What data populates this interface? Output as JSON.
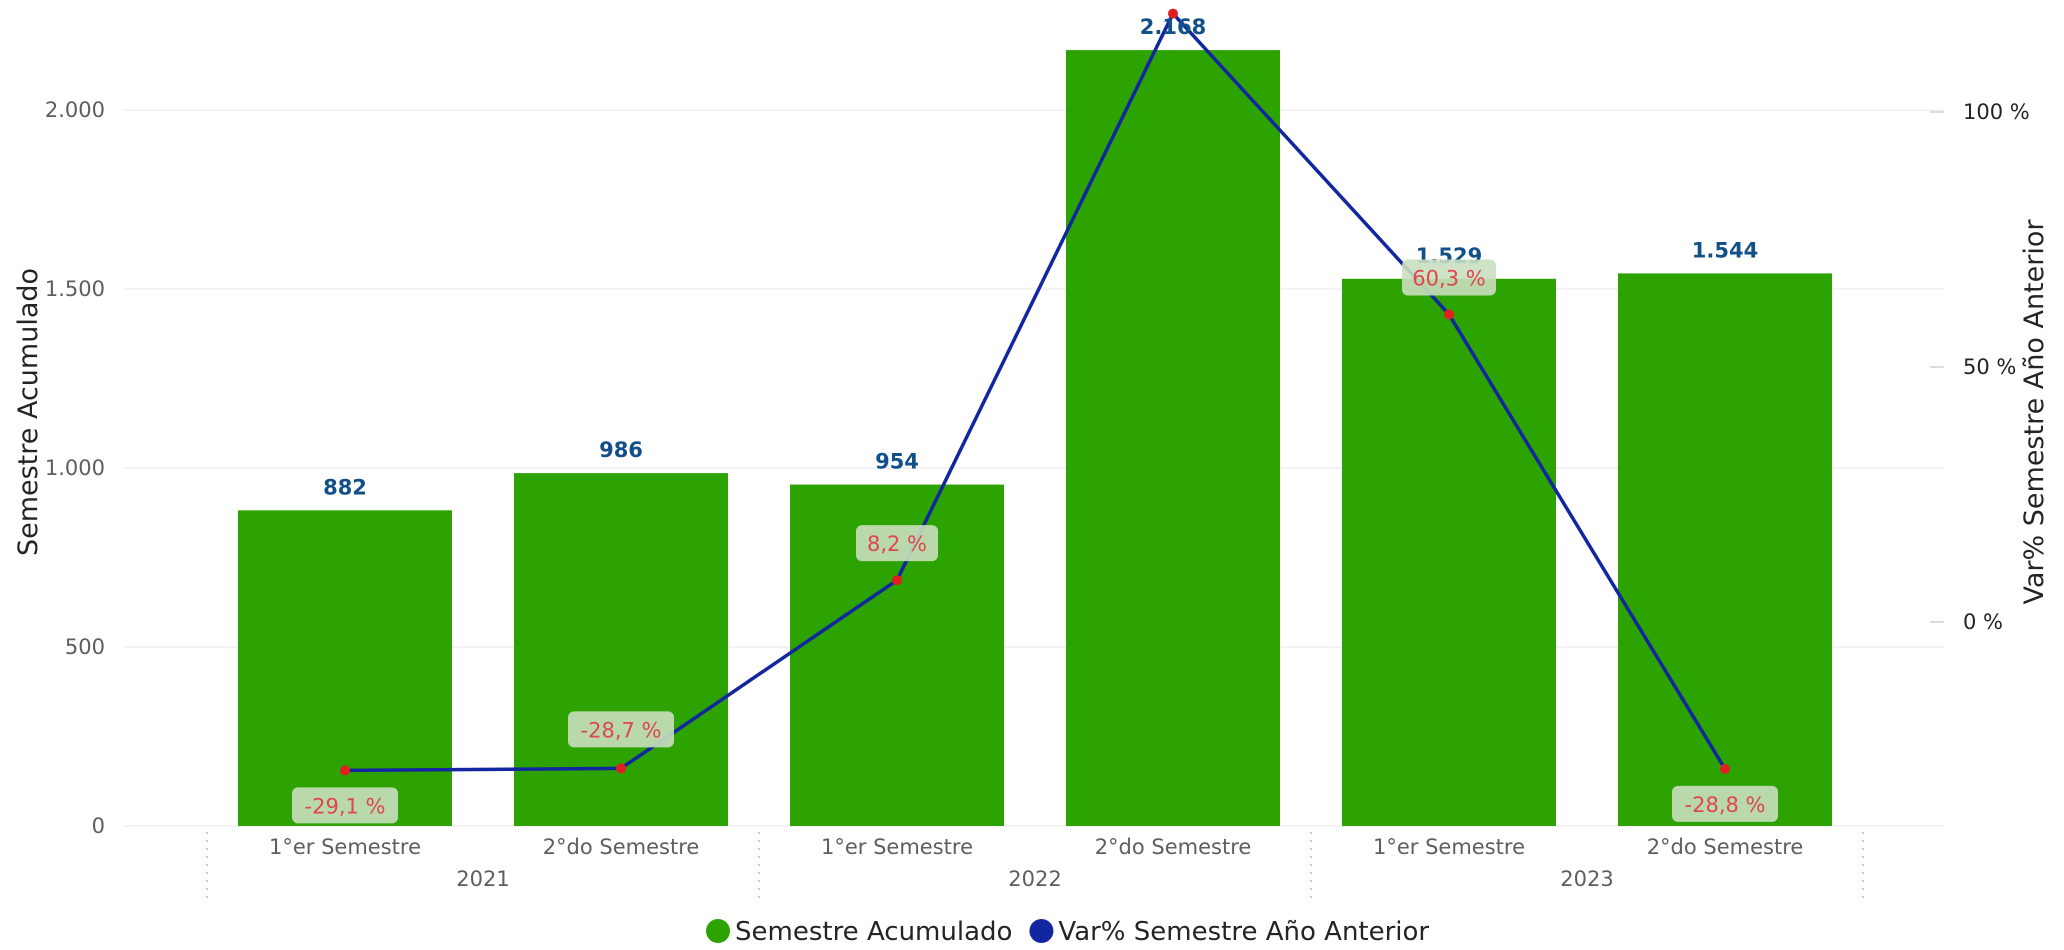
{
  "colors": {
    "bar": "#2ca300",
    "line": "#1226a0",
    "marker": "#e02020",
    "bar_label": "#12508a",
    "pct_label": "#e0464b",
    "pct_label_bg": "#c9dfc0",
    "grid": "#eeeeee"
  },
  "legend": [
    {
      "label": "Semestre Acumulado",
      "color": "#2ca300",
      "icon": "circle-icon"
    },
    {
      "label": "Var% Semestre Año Anterior",
      "color": "#1226a0",
      "icon": "circle-icon"
    }
  ],
  "chart_data": {
    "type": "bar",
    "categories": [
      "1°er Semestre",
      "2°do Semestre",
      "1°er Semestre",
      "2°do Semestre",
      "1°er Semestre",
      "2°do Semestre"
    ],
    "groups": [
      {
        "label": "2021",
        "categories": [
          0,
          1
        ]
      },
      {
        "label": "2022",
        "categories": [
          2,
          3
        ]
      },
      {
        "label": "2023",
        "categories": [
          4,
          5
        ]
      }
    ],
    "series": [
      {
        "name": "Semestre Acumulado",
        "type": "bar",
        "axis": "left",
        "values": [
          882,
          986,
          954,
          2168,
          1529,
          1544
        ],
        "labels": [
          "882",
          "986",
          "954",
          "2.168",
          "1.529",
          "1.544"
        ]
      },
      {
        "name": "Var% Semestre Año Anterior",
        "type": "line",
        "axis": "right",
        "values": [
          -29.1,
          -28.7,
          8.2,
          119.3,
          60.3,
          -28.8
        ],
        "labels": [
          "-29,1 %",
          "-28,7 %",
          "8,2 %",
          "",
          "60,3 %",
          "-28,8 %"
        ]
      }
    ],
    "ylabel": "Semestre Acumulado",
    "y2label": "Var% Semestre Año Anterior",
    "ylim": [
      0,
      2280
    ],
    "y2lim": [
      -40,
      120
    ],
    "yticks": [
      0,
      500,
      1000,
      1500,
      2000
    ],
    "yticklabels": [
      "0",
      "500",
      "1.000",
      "1.500",
      "2.000"
    ],
    "y2ticks": [
      0,
      50,
      100
    ],
    "y2ticklabels": [
      "0 %",
      "50 %",
      "100 %"
    ],
    "grid": true,
    "legend_position": "bottom-center"
  }
}
